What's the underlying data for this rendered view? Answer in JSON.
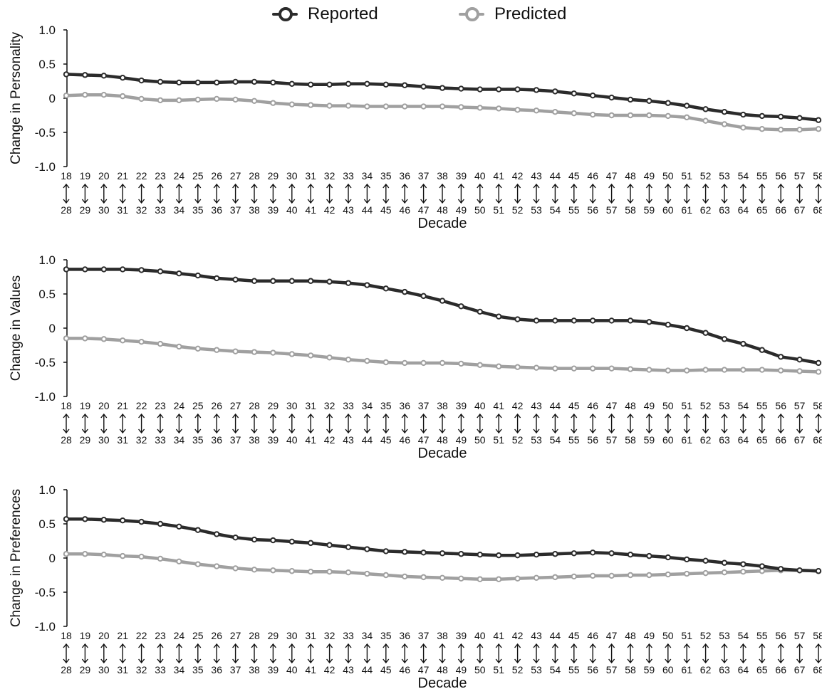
{
  "legend": {
    "reported_label": "Reported",
    "predicted_label": "Predicted"
  },
  "colors": {
    "reported": "#2b2b2b",
    "predicted": "#a0a0a0"
  },
  "chart_data": [
    {
      "type": "line",
      "ylabel": "Change in Personality",
      "xlabel": "Decade",
      "ylim": [
        -1.0,
        1.0
      ],
      "yticks": [
        "1.0",
        "0.5",
        "0",
        "-0.5",
        "-1.0"
      ],
      "categories_start": [
        "18",
        "19",
        "20",
        "21",
        "22",
        "23",
        "24",
        "25",
        "26",
        "27",
        "28",
        "29",
        "30",
        "31",
        "32",
        "33",
        "34",
        "35",
        "36",
        "37",
        "38",
        "39",
        "40",
        "41",
        "42",
        "43",
        "44",
        "45",
        "46",
        "47",
        "48",
        "49",
        "50",
        "51",
        "52",
        "53",
        "54",
        "55",
        "56",
        "57",
        "58"
      ],
      "categories_end": [
        "28",
        "29",
        "30",
        "31",
        "32",
        "33",
        "34",
        "35",
        "36",
        "37",
        "38",
        "39",
        "40",
        "41",
        "42",
        "43",
        "44",
        "45",
        "46",
        "47",
        "48",
        "49",
        "50",
        "51",
        "52",
        "53",
        "54",
        "55",
        "56",
        "57",
        "58",
        "59",
        "60",
        "61",
        "62",
        "63",
        "64",
        "65",
        "66",
        "67",
        "68"
      ],
      "series": [
        {
          "name": "Reported",
          "values": [
            0.35,
            0.34,
            0.33,
            0.3,
            0.26,
            0.24,
            0.23,
            0.23,
            0.23,
            0.24,
            0.24,
            0.23,
            0.21,
            0.2,
            0.2,
            0.21,
            0.21,
            0.2,
            0.19,
            0.17,
            0.15,
            0.14,
            0.13,
            0.13,
            0.13,
            0.12,
            0.1,
            0.07,
            0.04,
            0.01,
            -0.02,
            -0.04,
            -0.07,
            -0.11,
            -0.16,
            -0.2,
            -0.24,
            -0.26,
            -0.27,
            -0.29,
            -0.32
          ]
        },
        {
          "name": "Predicted",
          "values": [
            0.04,
            0.05,
            0.05,
            0.03,
            -0.01,
            -0.03,
            -0.03,
            -0.02,
            -0.01,
            -0.02,
            -0.04,
            -0.07,
            -0.09,
            -0.1,
            -0.11,
            -0.11,
            -0.12,
            -0.12,
            -0.12,
            -0.12,
            -0.12,
            -0.13,
            -0.14,
            -0.15,
            -0.17,
            -0.18,
            -0.2,
            -0.22,
            -0.24,
            -0.25,
            -0.25,
            -0.25,
            -0.26,
            -0.28,
            -0.33,
            -0.38,
            -0.43,
            -0.45,
            -0.46,
            -0.46,
            -0.45
          ]
        }
      ]
    },
    {
      "type": "line",
      "ylabel": "Change in Values",
      "xlabel": "Decade",
      "ylim": [
        -1.0,
        1.0
      ],
      "yticks": [
        "1.0",
        "0.5",
        "0",
        "-0.5",
        "-1.0"
      ],
      "categories_start": [
        "18",
        "19",
        "20",
        "21",
        "22",
        "23",
        "24",
        "25",
        "26",
        "27",
        "28",
        "29",
        "30",
        "31",
        "32",
        "33",
        "34",
        "35",
        "36",
        "37",
        "38",
        "39",
        "40",
        "41",
        "42",
        "43",
        "44",
        "45",
        "46",
        "47",
        "48",
        "49",
        "50",
        "51",
        "52",
        "53",
        "54",
        "55",
        "56",
        "57",
        "58"
      ],
      "categories_end": [
        "28",
        "29",
        "30",
        "31",
        "32",
        "33",
        "34",
        "35",
        "36",
        "37",
        "38",
        "39",
        "40",
        "41",
        "42",
        "43",
        "44",
        "45",
        "46",
        "47",
        "48",
        "49",
        "50",
        "51",
        "52",
        "53",
        "54",
        "55",
        "56",
        "57",
        "58",
        "59",
        "60",
        "61",
        "62",
        "63",
        "64",
        "65",
        "66",
        "67",
        "68"
      ],
      "series": [
        {
          "name": "Reported",
          "values": [
            0.86,
            0.86,
            0.86,
            0.86,
            0.85,
            0.83,
            0.8,
            0.77,
            0.73,
            0.71,
            0.69,
            0.69,
            0.69,
            0.69,
            0.68,
            0.66,
            0.63,
            0.58,
            0.53,
            0.47,
            0.4,
            0.32,
            0.24,
            0.17,
            0.13,
            0.11,
            0.11,
            0.11,
            0.11,
            0.11,
            0.11,
            0.09,
            0.05,
            0.0,
            -0.07,
            -0.16,
            -0.23,
            -0.32,
            -0.42,
            -0.46,
            -0.51
          ]
        },
        {
          "name": "Predicted",
          "values": [
            -0.15,
            -0.15,
            -0.16,
            -0.18,
            -0.2,
            -0.23,
            -0.27,
            -0.3,
            -0.32,
            -0.34,
            -0.35,
            -0.36,
            -0.38,
            -0.4,
            -0.43,
            -0.46,
            -0.48,
            -0.5,
            -0.51,
            -0.51,
            -0.51,
            -0.52,
            -0.54,
            -0.56,
            -0.57,
            -0.58,
            -0.59,
            -0.59,
            -0.59,
            -0.59,
            -0.6,
            -0.61,
            -0.62,
            -0.62,
            -0.61,
            -0.61,
            -0.61,
            -0.61,
            -0.62,
            -0.63,
            -0.64
          ]
        }
      ]
    },
    {
      "type": "line",
      "ylabel": "Change in Preferences",
      "xlabel": "Decade",
      "ylim": [
        -1.0,
        1.0
      ],
      "yticks": [
        "1.0",
        "0.5",
        "0",
        "-0.5",
        "-1.0"
      ],
      "categories_start": [
        "18",
        "19",
        "20",
        "21",
        "22",
        "23",
        "24",
        "25",
        "26",
        "27",
        "28",
        "29",
        "30",
        "31",
        "32",
        "33",
        "34",
        "35",
        "36",
        "37",
        "38",
        "39",
        "40",
        "41",
        "42",
        "43",
        "44",
        "45",
        "46",
        "47",
        "48",
        "49",
        "50",
        "51",
        "52",
        "53",
        "54",
        "55",
        "56",
        "57",
        "58"
      ],
      "categories_end": [
        "28",
        "29",
        "30",
        "31",
        "32",
        "33",
        "34",
        "35",
        "36",
        "37",
        "38",
        "39",
        "40",
        "41",
        "42",
        "43",
        "44",
        "45",
        "46",
        "47",
        "48",
        "49",
        "50",
        "51",
        "52",
        "53",
        "54",
        "55",
        "56",
        "57",
        "58",
        "59",
        "60",
        "61",
        "62",
        "63",
        "64",
        "65",
        "66",
        "67",
        "68"
      ],
      "series": [
        {
          "name": "Reported",
          "values": [
            0.57,
            0.57,
            0.56,
            0.55,
            0.53,
            0.5,
            0.46,
            0.41,
            0.35,
            0.3,
            0.27,
            0.26,
            0.24,
            0.22,
            0.19,
            0.16,
            0.13,
            0.1,
            0.09,
            0.08,
            0.07,
            0.06,
            0.05,
            0.04,
            0.04,
            0.05,
            0.06,
            0.07,
            0.08,
            0.07,
            0.05,
            0.03,
            0.01,
            -0.02,
            -0.04,
            -0.07,
            -0.09,
            -0.12,
            -0.16,
            -0.18,
            -0.19
          ]
        },
        {
          "name": "Predicted",
          "values": [
            0.06,
            0.06,
            0.05,
            0.03,
            0.02,
            -0.01,
            -0.05,
            -0.09,
            -0.12,
            -0.15,
            -0.17,
            -0.18,
            -0.19,
            -0.2,
            -0.2,
            -0.21,
            -0.23,
            -0.25,
            -0.27,
            -0.28,
            -0.29,
            -0.3,
            -0.31,
            -0.31,
            -0.3,
            -0.29,
            -0.28,
            -0.27,
            -0.26,
            -0.26,
            -0.25,
            -0.25,
            -0.24,
            -0.23,
            -0.22,
            -0.21,
            -0.2,
            -0.19,
            -0.18,
            -0.18,
            -0.19
          ]
        }
      ]
    }
  ]
}
